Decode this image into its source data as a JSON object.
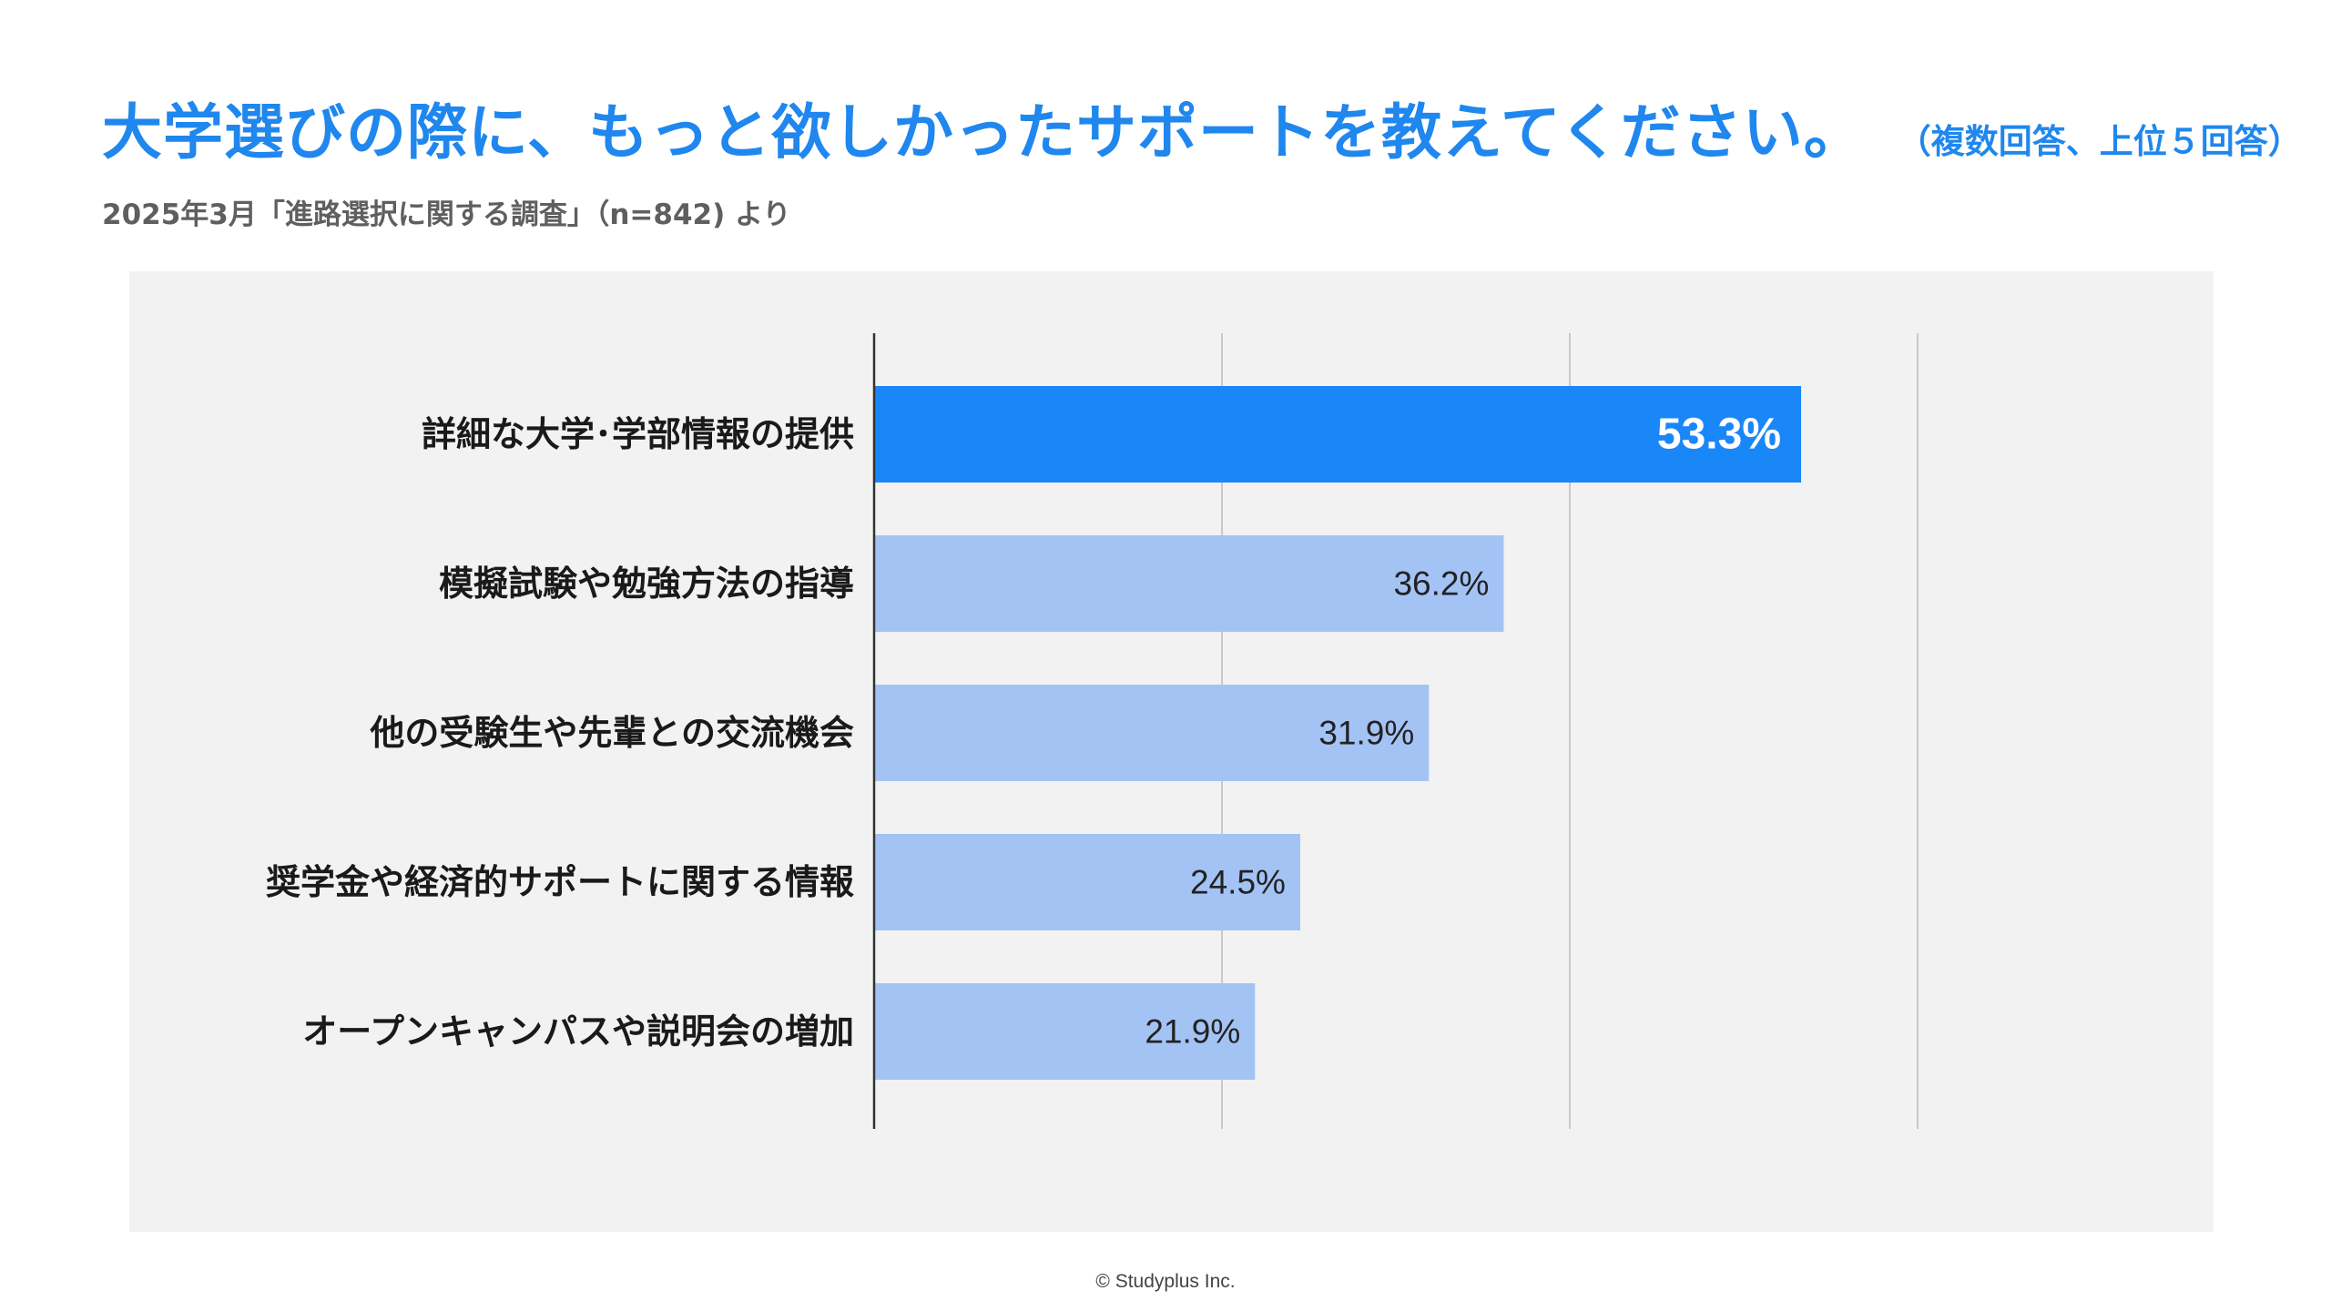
{
  "header": {
    "title": "大学選びの際に、もっと欲しかったサポートを教えてください。",
    "title_note": "（複数回答、上位５回答）",
    "subtitle": "2025年3月「進路選択に関する調査」（n=842) より"
  },
  "footer": {
    "copyright": "© Studyplus Inc."
  },
  "colors": {
    "accent": "#1f87ee",
    "highlight_bar": "#1a87f8",
    "bar": "#a4c3f5",
    "panel_background": "#f2f2f2",
    "gridline": "#c8c8c8",
    "axis": "#333333"
  },
  "chart_data": {
    "type": "bar",
    "orientation": "horizontal",
    "unit": "%",
    "categories": [
      "詳細な大学･学部情報の提供",
      "模擬試験や勉強方法の指導",
      "他の受験生や先輩との交流機会",
      "奨学金や経済的サポートに関する情報",
      "オープンキャンパスや説明会の増加"
    ],
    "values": [
      53.3,
      36.2,
      31.9,
      24.5,
      21.9
    ],
    "value_labels": [
      "53.3%",
      "36.2%",
      "31.9%",
      "24.5%",
      "21.9%"
    ],
    "highlight_index": 0,
    "xlim": [
      0,
      60
    ],
    "gridlines": [
      0,
      20,
      40,
      60
    ],
    "grid": true,
    "tick_labels_shown": false,
    "legend": "none"
  }
}
